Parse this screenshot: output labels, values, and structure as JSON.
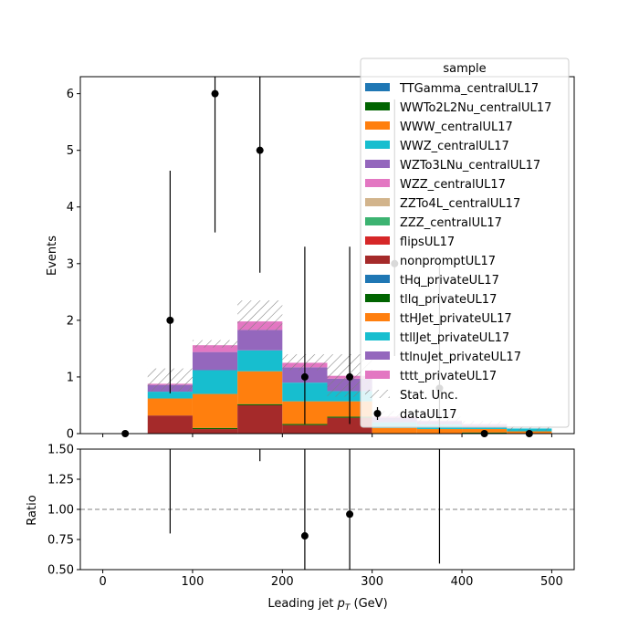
{
  "chart_data": {
    "type": "bar",
    "stacked": true,
    "xlabel": "Leading jet  p_T (GeV)",
    "xlabel_main": "Leading jet  ",
    "xlabel_p": "p",
    "xlabel_sub": "T",
    "xlabel_unit": " (GeV)",
    "ylabel_top": "Events",
    "ylabel_bottom": "Ratio",
    "xlim": [
      -25,
      525
    ],
    "ylim_top": [
      0,
      6.3
    ],
    "ylim_bottom": [
      0.5,
      1.5
    ],
    "xticks": [
      0,
      100,
      200,
      300,
      400,
      500
    ],
    "xtick_labels": [
      "0",
      "100",
      "200",
      "300",
      "400",
      "500"
    ],
    "yticks_top": [
      0,
      1,
      2,
      3,
      4,
      5,
      6
    ],
    "ytick_labels_top": [
      "0",
      "1",
      "2",
      "3",
      "4",
      "5",
      "6"
    ],
    "yticks_bottom": [
      0.5,
      0.75,
      1.0,
      1.25,
      1.5
    ],
    "ytick_labels_bottom": [
      "0.50",
      "0.75",
      "1.00",
      "1.25",
      "1.50"
    ],
    "bin_edges": [
      0,
      50,
      100,
      150,
      200,
      250,
      300,
      350,
      400,
      450,
      500
    ],
    "legend_title": "sample",
    "legend_position": "upper right",
    "series": [
      {
        "name": "TTGamma_centralUL17",
        "color": "#1f77b4",
        "values": [
          0,
          0,
          0,
          0,
          0,
          0,
          0,
          0,
          0,
          0
        ]
      },
      {
        "name": "WWTo2L2Nu_centralUL17",
        "color": "#006400",
        "values": [
          0,
          0,
          0,
          0,
          0,
          0,
          0,
          0,
          0,
          0
        ]
      },
      {
        "name": "WWW_centralUL17",
        "color": "#ff7f0e",
        "values": [
          0,
          0,
          0,
          0,
          0,
          0,
          0,
          0,
          0,
          0
        ]
      },
      {
        "name": "WWZ_centralUL17",
        "color": "#17becf",
        "values": [
          0,
          0,
          0,
          0,
          0,
          0,
          0,
          0,
          0,
          0
        ]
      },
      {
        "name": "WZTo3LNu_centralUL17",
        "color": "#9467bd",
        "values": [
          0,
          0,
          0,
          0,
          0,
          0,
          0,
          0,
          0,
          0
        ]
      },
      {
        "name": "WZZ_centralUL17",
        "color": "#e377c2",
        "values": [
          0,
          0,
          0,
          0,
          0,
          0,
          0,
          0,
          0,
          0
        ]
      },
      {
        "name": "ZZTo4L_centralUL17",
        "color": "#d2b48c",
        "values": [
          0,
          0,
          0,
          0,
          0,
          0,
          0,
          0,
          0,
          0
        ]
      },
      {
        "name": "ZZZ_centralUL17",
        "color": "#3cb371",
        "values": [
          0,
          0,
          0,
          0,
          0,
          0,
          0,
          0,
          0,
          0
        ]
      },
      {
        "name": "flipsUL17",
        "color": "#d62728",
        "values": [
          0,
          0,
          0,
          0,
          0,
          0,
          0,
          0,
          0,
          0
        ]
      },
      {
        "name": "nonpromptUL17",
        "color": "#a52a2a",
        "values": [
          0,
          0.32,
          0.08,
          0.5,
          0.15,
          0.28,
          0,
          0,
          0,
          0
        ]
      },
      {
        "name": "tHq_privateUL17",
        "color": "#1f77b4",
        "values": [
          0,
          0,
          0,
          0,
          0,
          0,
          0,
          0,
          0,
          0
        ]
      },
      {
        "name": "tllq_privateUL17",
        "color": "#006400",
        "values": [
          0,
          0,
          0.02,
          0.02,
          0.02,
          0.02,
          0,
          0,
          0.02,
          0
        ]
      },
      {
        "name": "ttHJet_privateUL17",
        "color": "#ff7f0e",
        "values": [
          0,
          0.3,
          0.6,
          0.58,
          0.4,
          0.27,
          0.1,
          0.08,
          0.06,
          0.04
        ]
      },
      {
        "name": "ttllJet_privateUL17",
        "color": "#17becf",
        "values": [
          0,
          0.12,
          0.42,
          0.37,
          0.33,
          0.18,
          0.1,
          0.08,
          0.04,
          0.05
        ]
      },
      {
        "name": "ttlnuJet_privateUL17",
        "color": "#9467bd",
        "values": [
          0,
          0.12,
          0.32,
          0.36,
          0.27,
          0.22,
          0.08,
          0.06,
          0.04,
          0
        ]
      },
      {
        "name": "tttt_privateUL17",
        "color": "#e377c2",
        "values": [
          0,
          0.02,
          0.12,
          0.15,
          0.08,
          0.05,
          0.02,
          0.01,
          0.01,
          0
        ]
      }
    ],
    "stat_unc": {
      "name": "Stat. Unc.",
      "down": [
        0,
        0.75,
        1.52,
        1.82,
        1.12,
        0.65,
        0.22,
        0.15,
        0.1,
        0.05
      ],
      "up": [
        0,
        1.15,
        1.65,
        2.35,
        1.4,
        1.4,
        0.4,
        0.3,
        0.22,
        0.13
      ]
    },
    "data": {
      "name": "dataUL17",
      "x": [
        25,
        75,
        125,
        175,
        225,
        275,
        325,
        375,
        425,
        475
      ],
      "y": [
        0,
        2,
        6,
        5,
        1,
        1,
        3,
        0.8,
        0,
        0
      ],
      "yerr_low": [
        0,
        1.29,
        2.45,
        2.16,
        0.83,
        0.83,
        1.63,
        0.8,
        0,
        0
      ],
      "yerr_high": [
        0,
        2.64,
        3.58,
        3.38,
        2.3,
        2.3,
        2.9,
        2.2,
        0,
        0
      ]
    },
    "ratio": {
      "x": [
        75,
        125,
        175,
        225,
        275,
        375
      ],
      "y": [
        2.1,
        3.8,
        2.5,
        0.78,
        0.96,
        2.8
      ],
      "yerr_low": [
        1.3,
        1.5,
        1.1,
        0.64,
        0.8,
        2.25
      ],
      "yerr_high": [
        2.6,
        2.3,
        1.7,
        1.64,
        1.6,
        6.0
      ]
    },
    "ratio_reference": 1.0
  }
}
